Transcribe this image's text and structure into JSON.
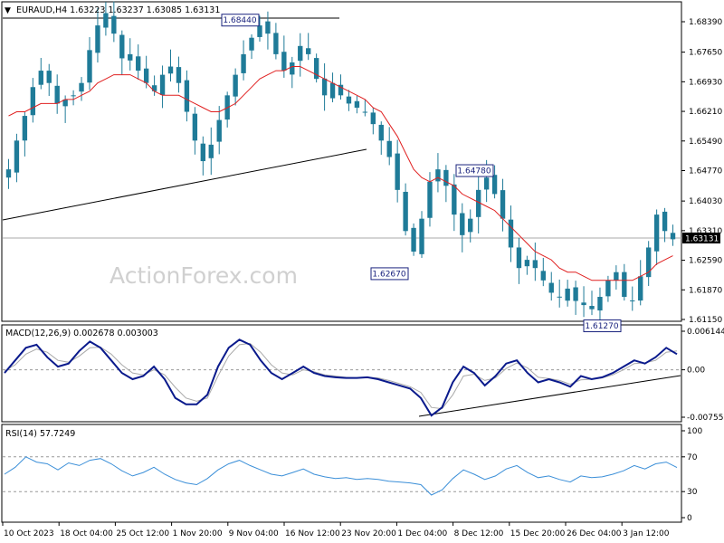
{
  "symbol_line": "EURAUD,H4  1.63223 1.63237 1.63085 1.63131",
  "watermark": "ActionForex.com",
  "colors": {
    "candle": "#1f7b98",
    "ma": "#e02020",
    "macd": "#0a1a8c",
    "signal": "#aaaaaa",
    "rsi": "#3b8fd8",
    "trendline": "#000000",
    "grid": "#999999"
  },
  "chart_data": [
    {
      "type": "candlestick",
      "title": "EURAUD,H4",
      "ohlc_last": {
        "open": 1.63223,
        "high": 1.63237,
        "low": 1.63085,
        "close": 1.63131
      },
      "ylim": [
        1.6115,
        1.6839
      ],
      "ytick_labels": [
        "1.68390",
        "1.67650",
        "1.66930",
        "1.66210",
        "1.65490",
        "1.64770",
        "1.64030",
        "1.63310",
        "1.62590",
        "1.61870",
        "1.61150"
      ],
      "current_price_label": "1.63131",
      "annotations": [
        {
          "text": "1.68440",
          "value": 1.6844
        },
        {
          "text": "1.64780",
          "value": 1.6478
        },
        {
          "text": "1.62670",
          "value": 1.6267
        },
        {
          "text": "1.61270",
          "value": 1.6127
        }
      ],
      "close_path": [
        1.648,
        1.655,
        1.661,
        1.668,
        1.672,
        1.669,
        1.664,
        1.665,
        1.666,
        1.669,
        1.677,
        1.683,
        1.686,
        1.681,
        1.675,
        1.676,
        1.672,
        1.669,
        1.667,
        1.671,
        1.673,
        1.669,
        1.662,
        1.655,
        1.65,
        1.654,
        1.66,
        1.666,
        1.671,
        1.676,
        1.68,
        1.683,
        1.681,
        1.676,
        1.672,
        1.674,
        1.678,
        1.676,
        1.67,
        1.666,
        1.669,
        1.666,
        1.664,
        1.663,
        1.662,
        1.659,
        1.655,
        1.651,
        1.643,
        1.633,
        1.628,
        1.636,
        1.645,
        1.648,
        1.644,
        1.637,
        1.632,
        1.636,
        1.643,
        1.646,
        1.642,
        1.636,
        1.629,
        1.624,
        1.626,
        1.624,
        1.621,
        1.618,
        1.617,
        1.619,
        1.616,
        1.615,
        1.614,
        1.617,
        1.621,
        1.623,
        1.617,
        1.616,
        1.622,
        1.629,
        1.637,
        1.633,
        1.631
      ],
      "ma_path": [
        1.661,
        1.662,
        1.662,
        1.663,
        1.664,
        1.664,
        1.664,
        1.665,
        1.665,
        1.666,
        1.667,
        1.669,
        1.67,
        1.671,
        1.671,
        1.671,
        1.67,
        1.669,
        1.667,
        1.666,
        1.666,
        1.666,
        1.665,
        1.664,
        1.663,
        1.662,
        1.662,
        1.663,
        1.664,
        1.666,
        1.668,
        1.67,
        1.671,
        1.672,
        1.672,
        1.673,
        1.673,
        1.672,
        1.671,
        1.67,
        1.669,
        1.668,
        1.667,
        1.666,
        1.665,
        1.663,
        1.662,
        1.659,
        1.656,
        1.652,
        1.648,
        1.646,
        1.645,
        1.646,
        1.645,
        1.644,
        1.642,
        1.641,
        1.64,
        1.639,
        1.638,
        1.636,
        1.634,
        1.632,
        1.63,
        1.628,
        1.627,
        1.626,
        1.624,
        1.623,
        1.623,
        1.622,
        1.621,
        1.621,
        1.621,
        1.621,
        1.621,
        1.621,
        1.622,
        1.623,
        1.625,
        1.626,
        1.627
      ],
      "x_labels": [
        "10 Oct 2023",
        "18 Oct 04:00",
        "25 Oct 12:00",
        "1 Nov 20:00",
        "9 Nov 04:00",
        "16 Nov 12:00",
        "23 Nov 20:00",
        "1 Dec 04:00",
        "8 Dec 12:00",
        "15 Dec 20:00",
        "26 Dec 04:00",
        "3 Jan 12:00"
      ]
    },
    {
      "type": "line",
      "title": "MACD(12,26,9) 0.002678 0.003003",
      "ylim": [
        -0.007555,
        0.006144
      ],
      "ytick_labels": [
        "0.006144",
        "0.00",
        "-0.007555"
      ],
      "series": [
        {
          "name": "MACD",
          "values": [
            -0.0005,
            0.0015,
            0.0035,
            0.004,
            0.002,
            0.0005,
            0.001,
            0.003,
            0.0045,
            0.0035,
            0.0015,
            -0.0005,
            -0.0015,
            -0.001,
            0.0005,
            -0.0015,
            -0.0045,
            -0.0055,
            -0.0055,
            -0.004,
            0.0005,
            0.0035,
            0.0048,
            0.004,
            0.0015,
            -0.0005,
            -0.0015,
            -0.0005,
            0.0005,
            -0.0005,
            -0.001,
            -0.0012,
            -0.0013,
            -0.0013,
            -0.0012,
            -0.0015,
            -0.002,
            -0.0025,
            -0.003,
            -0.0045,
            -0.0073,
            -0.006,
            -0.002,
            0.0005,
            -0.0005,
            -0.0025,
            -0.001,
            0.001,
            0.0015,
            -0.0005,
            -0.002,
            -0.0015,
            -0.002,
            -0.0027,
            -0.001,
            -0.0015,
            -0.0012,
            -0.0005,
            0.0005,
            0.0015,
            0.001,
            0.002,
            0.0035,
            0.0025
          ]
        },
        {
          "name": "Signal",
          "values": [
            -0.0002,
            0.0008,
            0.0025,
            0.0033,
            0.0028,
            0.0015,
            0.0012,
            0.0022,
            0.0035,
            0.0036,
            0.0025,
            0.0008,
            -0.0005,
            -0.0008,
            0.0,
            -0.0008,
            -0.0028,
            -0.0045,
            -0.005,
            -0.0045,
            -0.001,
            0.0022,
            0.004,
            0.0042,
            0.0028,
            0.0008,
            -0.0005,
            -0.0008,
            0.0,
            -0.0003,
            -0.0008,
            -0.001,
            -0.0012,
            -0.0013,
            -0.0012,
            -0.0013,
            -0.0017,
            -0.0022,
            -0.0027,
            -0.0036,
            -0.006,
            -0.0062,
            -0.004,
            -0.001,
            -0.0007,
            -0.0017,
            -0.0013,
            0.0002,
            0.0011,
            0.0003,
            -0.0012,
            -0.0014,
            -0.0017,
            -0.0023,
            -0.0016,
            -0.0015,
            -0.0013,
            -0.0008,
            0.0,
            0.001,
            0.0011,
            0.0015,
            0.0028,
            0.003
          ]
        }
      ]
    },
    {
      "type": "line",
      "title": "RSI(14) 57.7249",
      "ylim": [
        0,
        100
      ],
      "ytick_labels": [
        "100",
        "70",
        "30",
        "0"
      ],
      "levels": [
        70,
        30
      ],
      "series": [
        {
          "name": "RSI",
          "values": [
            50,
            58,
            70,
            64,
            62,
            55,
            63,
            60,
            66,
            68,
            62,
            54,
            48,
            52,
            58,
            50,
            44,
            40,
            38,
            45,
            55,
            62,
            66,
            60,
            55,
            50,
            48,
            52,
            56,
            50,
            47,
            45,
            46,
            44,
            45,
            44,
            42,
            41,
            40,
            38,
            26,
            32,
            45,
            55,
            50,
            44,
            48,
            56,
            60,
            52,
            46,
            48,
            44,
            41,
            48,
            46,
            47,
            50,
            54,
            60,
            56,
            62,
            64,
            57.7
          ]
        }
      ]
    }
  ]
}
